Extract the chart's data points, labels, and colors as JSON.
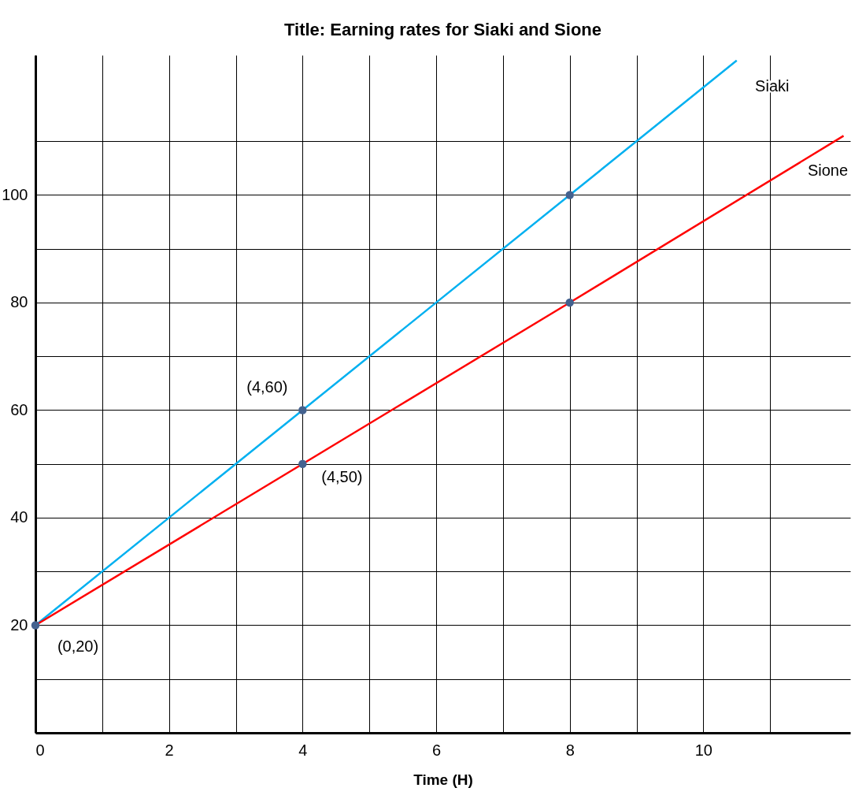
{
  "chart_data": {
    "type": "line",
    "title": "Title: Earning rates for Siaki and Sione",
    "xlabel": "Time (H)",
    "xlim": [
      0,
      12.2
    ],
    "ylim": [
      0,
      126
    ],
    "xticks": [
      0,
      {
        "value": 1,
        "label": null
      },
      2,
      {
        "value": 3,
        "label": null
      },
      4,
      {
        "value": 5,
        "label": null
      },
      6,
      {
        "value": 7,
        "label": null
      },
      8,
      {
        "value": 9,
        "label": null
      },
      10,
      {
        "value": 11,
        "label": null
      }
    ],
    "yticks": [
      {
        "value": 10,
        "label": null
      },
      20,
      {
        "value": 30,
        "label": null
      },
      40,
      {
        "value": 50,
        "label": null
      },
      60,
      {
        "value": 70,
        "label": null
      },
      80,
      {
        "value": 90,
        "label": null
      },
      100,
      {
        "value": 110,
        "label": null
      }
    ],
    "grid": true,
    "legend": false,
    "series": [
      {
        "name": "Siaki",
        "color": "#00b0f0",
        "x": [
          0,
          4,
          8,
          10.5
        ],
        "values": [
          20,
          60,
          100,
          125
        ]
      },
      {
        "name": "Sione",
        "color": "#ff0000",
        "x": [
          0,
          4,
          8,
          12.1
        ],
        "values": [
          20,
          50,
          80,
          111
        ]
      },
      {
        "type": "scatter",
        "color": "#44628f",
        "marker": "circle",
        "x": [
          0,
          4,
          8,
          4,
          8
        ],
        "values": [
          20,
          60,
          100,
          50,
          80
        ]
      }
    ],
    "annotations": [
      "(4,60)",
      "(4,50)",
      "(0,20)"
    ]
  }
}
